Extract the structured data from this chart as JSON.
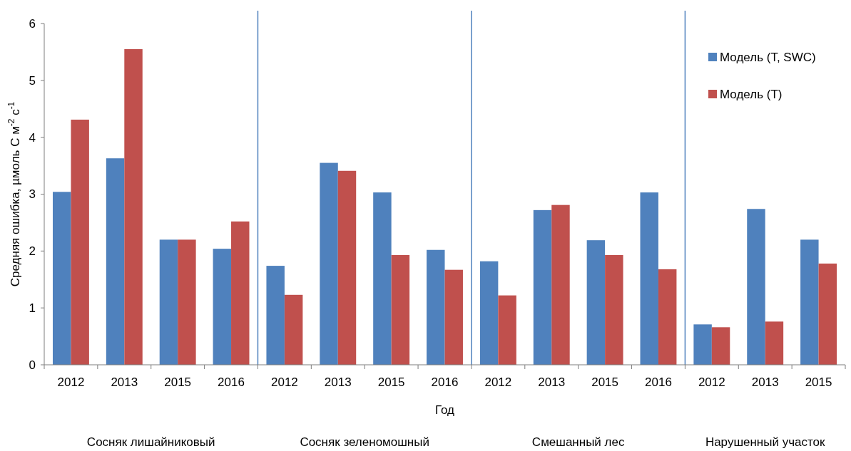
{
  "chart_data": {
    "type": "bar",
    "categories": [
      "2012",
      "2013",
      "2015",
      "2016",
      "2012",
      "2013",
      "2015",
      "2016",
      "2012",
      "2013",
      "2015",
      "2016",
      "2012",
      "2013",
      "2015"
    ],
    "series": [
      {
        "name": "Модель (T, SWC)",
        "color": "#4f81bd",
        "values": [
          3.04,
          3.63,
          2.2,
          2.04,
          1.74,
          3.55,
          3.03,
          2.02,
          1.82,
          2.72,
          2.19,
          3.03,
          0.71,
          2.74,
          2.2
        ]
      },
      {
        "name": "Модель (T)",
        "color": "#c0504d",
        "values": [
          4.31,
          5.55,
          2.2,
          2.52,
          1.23,
          3.41,
          1.93,
          1.67,
          1.22,
          2.81,
          1.93,
          1.68,
          0.66,
          0.76,
          1.78
        ]
      }
    ],
    "ylim": [
      0,
      6
    ],
    "yticks": [
      0,
      1,
      2,
      3,
      4,
      5,
      6
    ],
    "xlabel": "Год",
    "ylabel": "Средняя ошибка, µмоль C м$^{-2}$ с$^{-1}$",
    "annotations": [
      "Сосняк лишайниковый",
      "Сосняк зеленомошный",
      "Смешанный лес",
      "Нарушенный участок"
    ],
    "grid": false,
    "legend": "top right"
  }
}
